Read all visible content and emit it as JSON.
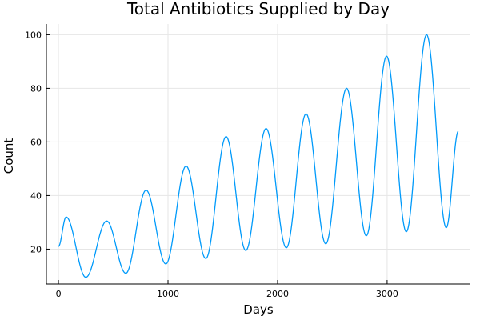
{
  "chart_data": {
    "type": "line",
    "title": "Total Antibiotics Supplied by Day",
    "xlabel": "Days",
    "ylabel": "Count",
    "xlim": [
      -110,
      3760
    ],
    "ylim": [
      7,
      104
    ],
    "xticks": [
      0,
      1000,
      2000,
      3000
    ],
    "xtick_labels": [
      "0",
      "1000",
      "2000",
      "3000"
    ],
    "yticks": [
      20,
      40,
      60,
      80,
      100
    ],
    "ytick_labels": [
      "20",
      "40",
      "60",
      "80",
      "100"
    ],
    "grid": true,
    "legend": "none",
    "series_color": "#009AFA",
    "series": [
      {
        "x": [
          0,
          70,
          250,
          440,
          615,
          800,
          980,
          1165,
          1345,
          1530,
          1710,
          1895,
          2080,
          2260,
          2440,
          2630,
          2810,
          2995,
          3175,
          3360,
          3540,
          3650
        ],
        "values": [
          21,
          32,
          9.5,
          30.5,
          11,
          42,
          14.5,
          51,
          16.5,
          62,
          19.5,
          65,
          20.5,
          70.5,
          22,
          80,
          25,
          92,
          26.5,
          100,
          28,
          64
        ]
      }
    ]
  }
}
